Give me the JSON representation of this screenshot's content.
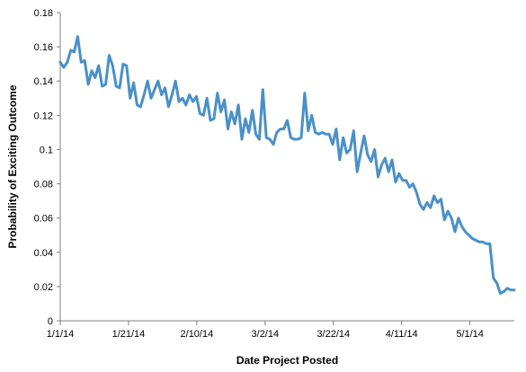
{
  "chart_data": {
    "type": "line",
    "xlabel": "Date Project Posted",
    "ylabel": "Probability of Exciting Outcome",
    "ylim": [
      0,
      0.18
    ],
    "y_ticks": [
      0,
      0.02,
      0.04,
      0.06,
      0.08,
      0.1,
      0.12,
      0.14,
      0.16,
      0.18
    ],
    "y_tick_labels": [
      "0",
      "0.02",
      "0.04",
      "0.06",
      "0.08",
      "0.1",
      "0.12",
      "0.14",
      "0.16",
      "0.18"
    ],
    "x_tick_labels": [
      "1/1/14",
      "1/21/14",
      "2/10/14",
      "3/2/14",
      "3/22/14",
      "4/11/14",
      "5/1/14"
    ],
    "x_tick_days": [
      0,
      20,
      40,
      60,
      80,
      100,
      120
    ],
    "x_range_days": [
      0,
      133
    ],
    "grid": false,
    "legend": "none",
    "series_color": "#4a90c8",
    "series": [
      {
        "values": [
          0.151,
          0.148,
          0.151,
          0.158,
          0.157,
          0.166,
          0.151,
          0.152,
          0.138,
          0.146,
          0.142,
          0.149,
          0.137,
          0.138,
          0.155,
          0.149,
          0.137,
          0.136,
          0.15,
          0.149,
          0.13,
          0.139,
          0.126,
          0.125,
          0.132,
          0.14,
          0.13,
          0.135,
          0.14,
          0.132,
          0.136,
          0.125,
          0.132,
          0.14,
          0.128,
          0.13,
          0.126,
          0.132,
          0.128,
          0.131,
          0.121,
          0.12,
          0.13,
          0.117,
          0.118,
          0.133,
          0.122,
          0.129,
          0.112,
          0.122,
          0.115,
          0.126,
          0.106,
          0.118,
          0.11,
          0.123,
          0.109,
          0.106,
          0.135,
          0.107,
          0.106,
          0.103,
          0.11,
          0.112,
          0.112,
          0.117,
          0.107,
          0.106,
          0.106,
          0.107,
          0.133,
          0.111,
          0.12,
          0.11,
          0.109,
          0.11,
          0.109,
          0.109,
          0.103,
          0.112,
          0.094,
          0.107,
          0.098,
          0.1,
          0.111,
          0.087,
          0.098,
          0.108,
          0.097,
          0.093,
          0.1,
          0.084,
          0.091,
          0.095,
          0.087,
          0.094,
          0.081,
          0.086,
          0.082,
          0.082,
          0.078,
          0.08,
          0.075,
          0.068,
          0.065,
          0.069,
          0.066,
          0.073,
          0.069,
          0.071,
          0.059,
          0.064,
          0.06,
          0.052,
          0.06,
          0.055,
          0.052,
          0.05,
          0.048,
          0.047,
          0.046,
          0.046,
          0.045,
          0.045,
          0.025,
          0.022,
          0.016,
          0.017,
          0.019,
          0.018,
          0.018
        ]
      }
    ]
  }
}
